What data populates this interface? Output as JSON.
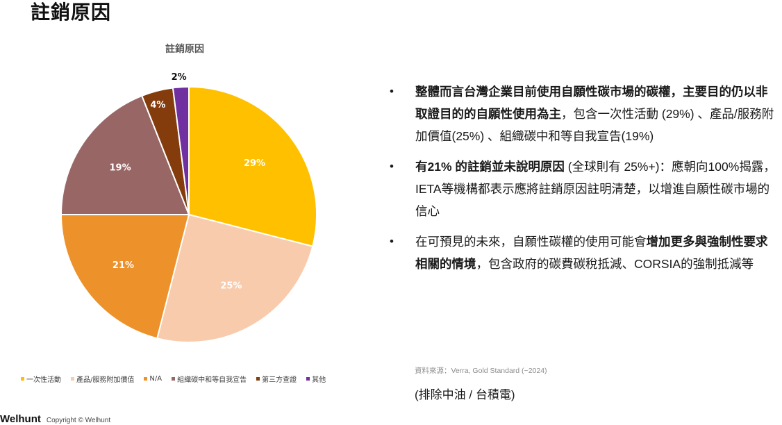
{
  "page": {
    "title": "註銷原因"
  },
  "chart_data": {
    "type": "pie",
    "title": "註銷原因",
    "categories": [
      "一次性活動",
      "產品/服務附加價值",
      "N/A",
      "組織碳中和等自我宣告",
      "第三方查證",
      "其他"
    ],
    "values": [
      29,
      25,
      21,
      19,
      4,
      2
    ],
    "labels": [
      "29%",
      "25%",
      "21%",
      "19%",
      "4%",
      "2%"
    ],
    "colors": [
      "#FFC000",
      "#F8CBAD",
      "#ED922A",
      "#996666",
      "#843C0C",
      "#7030A0"
    ],
    "legend_position": "bottom",
    "start": "top, clockwise"
  },
  "bullets": [
    {
      "parts": [
        {
          "text": "整體而言台灣企業目前使用自願性碳市場的碳權，主要目的仍以非取證目的的自願性使用為主",
          "bold": true
        },
        {
          "text": "，包含一次性活動 (29%) 、產品/服務附加價值(25%) 、組織碳中和等自我宣告(19%)",
          "bold": false
        }
      ]
    },
    {
      "parts": [
        {
          "text": "有21% 的註銷並未說明原因",
          "bold": true
        },
        {
          "text": " (全球則有 25%+)：應朝向100%揭露，IETA等機構都表示應將註銷原因註明清楚，以增進自願性碳市場的信心",
          "bold": false
        }
      ]
    },
    {
      "parts": [
        {
          "text": "在可預見的未來，自願性碳權的使用可能會",
          "bold": false
        },
        {
          "text": "增加更多與強制性要求相關的情境",
          "bold": true
        },
        {
          "text": "，包含政府的碳費碳稅抵減、CORSIA的強制抵減等",
          "bold": false
        }
      ]
    }
  ],
  "bullet_symbol": "•",
  "source": "資料來源：Verra, Gold Standard (~2024)",
  "note": "(排除中油 / 台積電)",
  "footer": {
    "brand": "Welhunt",
    "copyright": "Copyright © Welhunt"
  }
}
